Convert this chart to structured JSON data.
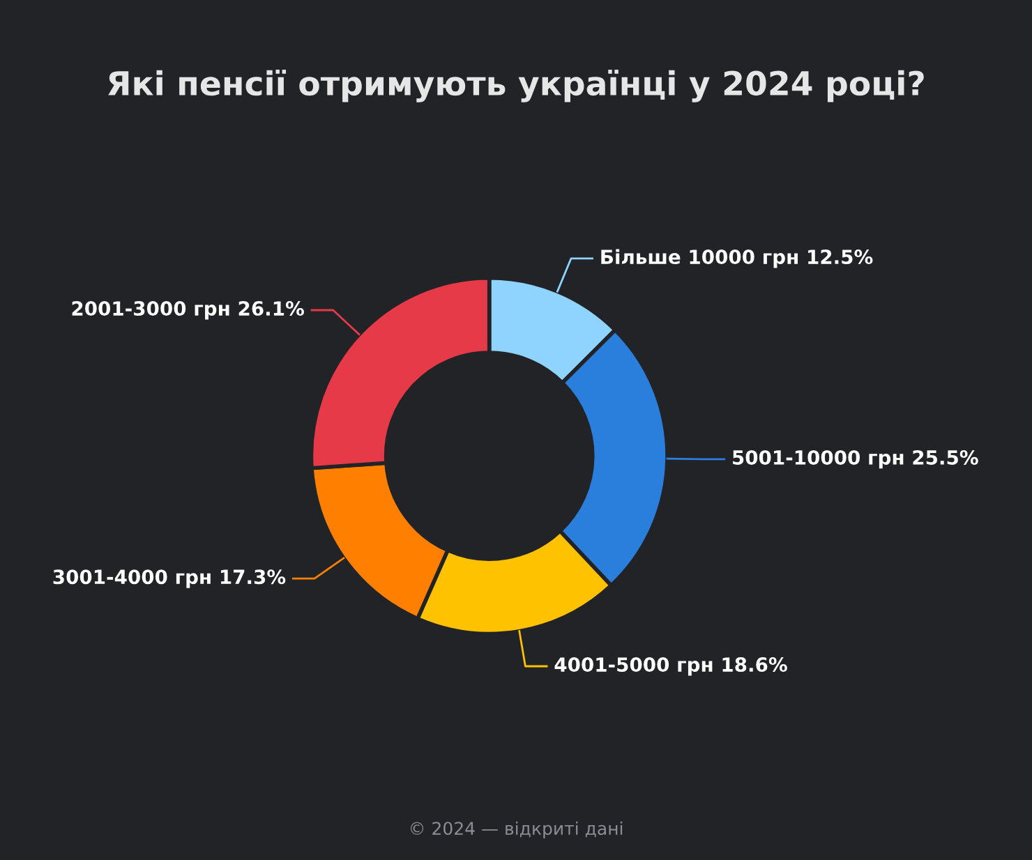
{
  "chart_data": {
    "type": "donut",
    "title": "Які пенсії отримують українці у 2024 році?",
    "categories": [
      "Більше 10000 грн",
      "5001-10000 грн",
      "4001-5000 грн",
      "3001-4000 грн",
      "2001-3000 грн"
    ],
    "values": [
      12.5,
      25.5,
      18.6,
      17.3,
      26.1
    ],
    "colors": [
      "#8fd4ff",
      "#2b7fdc",
      "#ffc200",
      "#ff8000",
      "#e63a48"
    ],
    "value_labels": [
      "12.5%",
      "25.5%",
      "18.6%",
      "17.3%",
      "26.1%"
    ],
    "annotations": [
      "© 2024 — відкриті дані"
    ],
    "legend": false
  }
}
